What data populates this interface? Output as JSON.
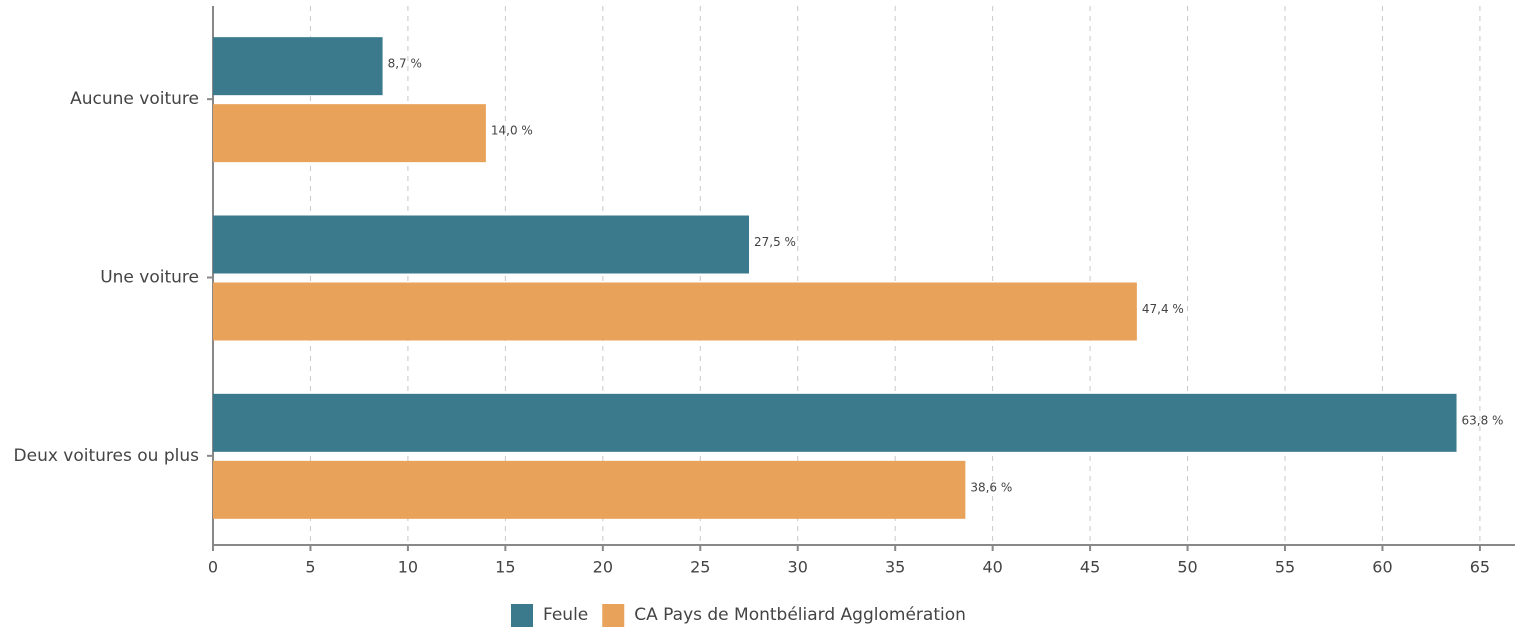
{
  "chart_data": {
    "type": "hbar",
    "categories": [
      "Aucune voiture",
      "Une voiture",
      "Deux voitures ou plus"
    ],
    "series": [
      {
        "name": "Feule",
        "color": "#3a7a8c",
        "values": [
          8.7,
          27.5,
          63.8
        ],
        "value_labels": [
          "8,7 %",
          "27,5 %",
          "63,8 %"
        ]
      },
      {
        "name": "CA Pays de Montbéliard Agglomération",
        "color": "#e8a25a",
        "values": [
          14.0,
          47.4,
          38.6
        ],
        "value_labels": [
          "14,0 %",
          "47,4 %",
          "38,6 %"
        ]
      }
    ],
    "xlim": [
      0,
      66.8
    ],
    "xticks": [
      0,
      5,
      10,
      15,
      20,
      25,
      30,
      35,
      40,
      45,
      50,
      55,
      60,
      65
    ],
    "grid": true,
    "legend": "bottom"
  }
}
